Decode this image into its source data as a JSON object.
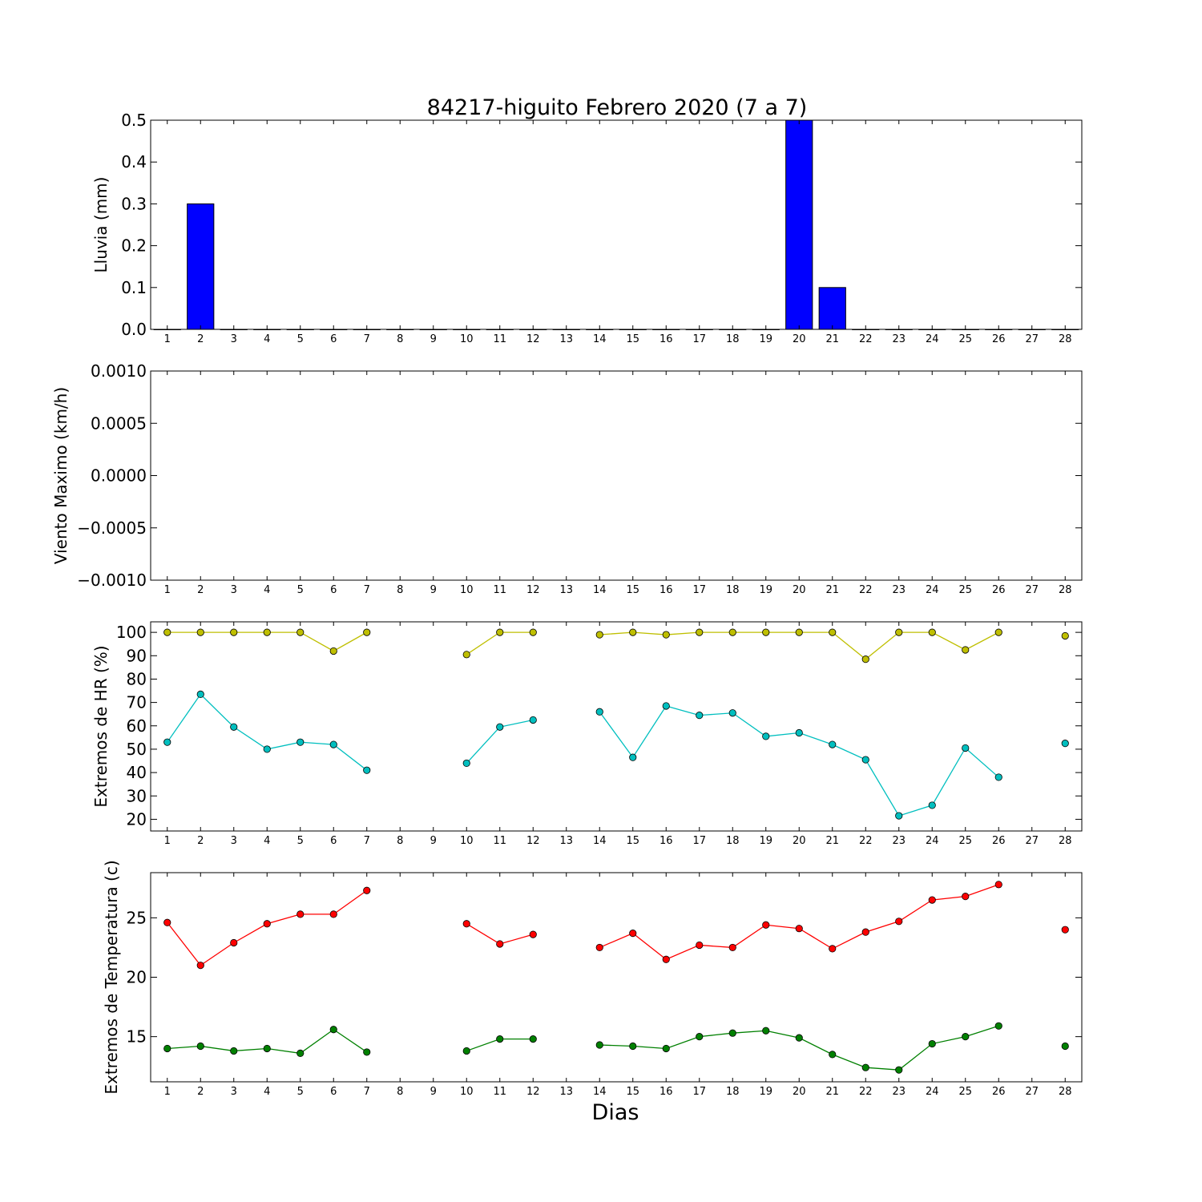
{
  "title": "84217-higuito Febrero 2020  (7 a 7)",
  "xlabel": "Dias",
  "x_ticks": [
    1,
    2,
    3,
    4,
    5,
    6,
    7,
    8,
    9,
    10,
    11,
    12,
    13,
    14,
    15,
    16,
    17,
    18,
    19,
    20,
    21,
    22,
    23,
    24,
    25,
    26,
    27,
    28
  ],
  "chart_data": [
    {
      "type": "bar",
      "ylabel": "Lluvia (mm)",
      "ylim": [
        0,
        0.5
      ],
      "yticks": [
        0.0,
        0.1,
        0.2,
        0.3,
        0.4,
        0.5
      ],
      "ytick_labels": [
        "0.0",
        "0.1",
        "0.2",
        "0.3",
        "0.4",
        "0.5"
      ],
      "categories": [
        1,
        2,
        3,
        4,
        5,
        6,
        7,
        8,
        9,
        10,
        11,
        12,
        13,
        14,
        15,
        16,
        17,
        18,
        19,
        20,
        21,
        22,
        23,
        24,
        25,
        26,
        27,
        28
      ],
      "values": [
        0,
        0.3,
        0,
        0,
        0,
        0,
        0,
        0,
        0,
        0,
        0,
        0,
        0,
        0,
        0,
        0,
        0,
        0,
        0,
        0.5,
        0.1,
        0,
        0,
        0,
        0,
        0,
        0,
        0
      ],
      "bar_color": "#0000ff"
    },
    {
      "type": "line",
      "ylabel": "Viento Maximo (km/h)",
      "ylim": [
        -0.001,
        0.001
      ],
      "yticks": [
        -0.001,
        -0.0005,
        0.0,
        0.0005,
        0.001
      ],
      "ytick_labels": [
        "−0.0010",
        "−0.0005",
        "0.0000",
        "0.0005",
        "0.0010"
      ],
      "series": []
    },
    {
      "type": "line",
      "ylabel": "Extremos de HR (%)",
      "ylim": [
        15,
        104.5
      ],
      "yticks": [
        20,
        30,
        40,
        50,
        60,
        70,
        80,
        90,
        100
      ],
      "ytick_labels": [
        "20",
        "30",
        "40",
        "50",
        "60",
        "70",
        "80",
        "90",
        "100"
      ],
      "series": [
        {
          "color": "#bfbf00",
          "x": [
            1,
            2,
            3,
            4,
            5,
            6,
            7,
            10,
            11,
            12,
            14,
            15,
            16,
            17,
            18,
            19,
            20,
            21,
            22,
            23,
            24,
            25,
            26,
            28
          ],
          "y": [
            100,
            100,
            100,
            100,
            100,
            92,
            100,
            90.5,
            100,
            100,
            99,
            100,
            99,
            100,
            100,
            100,
            100,
            100,
            88.5,
            100,
            100,
            92.5,
            100,
            98.5
          ]
        },
        {
          "color": "#00bfbf",
          "x": [
            1,
            2,
            3,
            4,
            5,
            6,
            7,
            10,
            11,
            12,
            14,
            15,
            16,
            17,
            18,
            19,
            20,
            21,
            22,
            23,
            24,
            25,
            26,
            28
          ],
          "y": [
            53,
            73.5,
            59.5,
            50,
            53,
            52,
            41,
            44,
            59.5,
            62.5,
            66,
            46.5,
            68.5,
            64.5,
            65.5,
            55.5,
            57,
            52,
            45.5,
            21.5,
            26,
            50.5,
            38,
            52.5
          ]
        }
      ]
    },
    {
      "type": "line",
      "ylabel": "Extremos de Temperatura (c)",
      "ylim": [
        11.2,
        28.8
      ],
      "yticks": [
        15,
        20,
        25
      ],
      "ytick_labels": [
        "15",
        "20",
        "25"
      ],
      "series": [
        {
          "color": "#ff0000",
          "x": [
            1,
            2,
            3,
            4,
            5,
            6,
            7,
            10,
            11,
            12,
            14,
            15,
            16,
            17,
            18,
            19,
            20,
            21,
            22,
            23,
            24,
            25,
            26,
            28
          ],
          "y": [
            24.6,
            21,
            22.9,
            24.5,
            25.3,
            25.3,
            27.3,
            24.5,
            22.8,
            23.6,
            22.5,
            23.7,
            21.5,
            22.7,
            22.5,
            24.4,
            24.1,
            22.4,
            23.8,
            24.7,
            26.5,
            26.8,
            27.8,
            24
          ]
        },
        {
          "color": "#008000",
          "x": [
            1,
            2,
            3,
            4,
            5,
            6,
            7,
            10,
            11,
            12,
            14,
            15,
            16,
            17,
            18,
            19,
            20,
            21,
            22,
            23,
            24,
            25,
            26,
            28
          ],
          "y": [
            14,
            14.2,
            13.8,
            14,
            13.6,
            15.6,
            13.7,
            13.8,
            14.8,
            14.8,
            14.3,
            14.2,
            14,
            15,
            15.3,
            15.5,
            14.9,
            13.5,
            12.4,
            12.2,
            14.4,
            15,
            15.9,
            14.2
          ]
        }
      ]
    }
  ]
}
